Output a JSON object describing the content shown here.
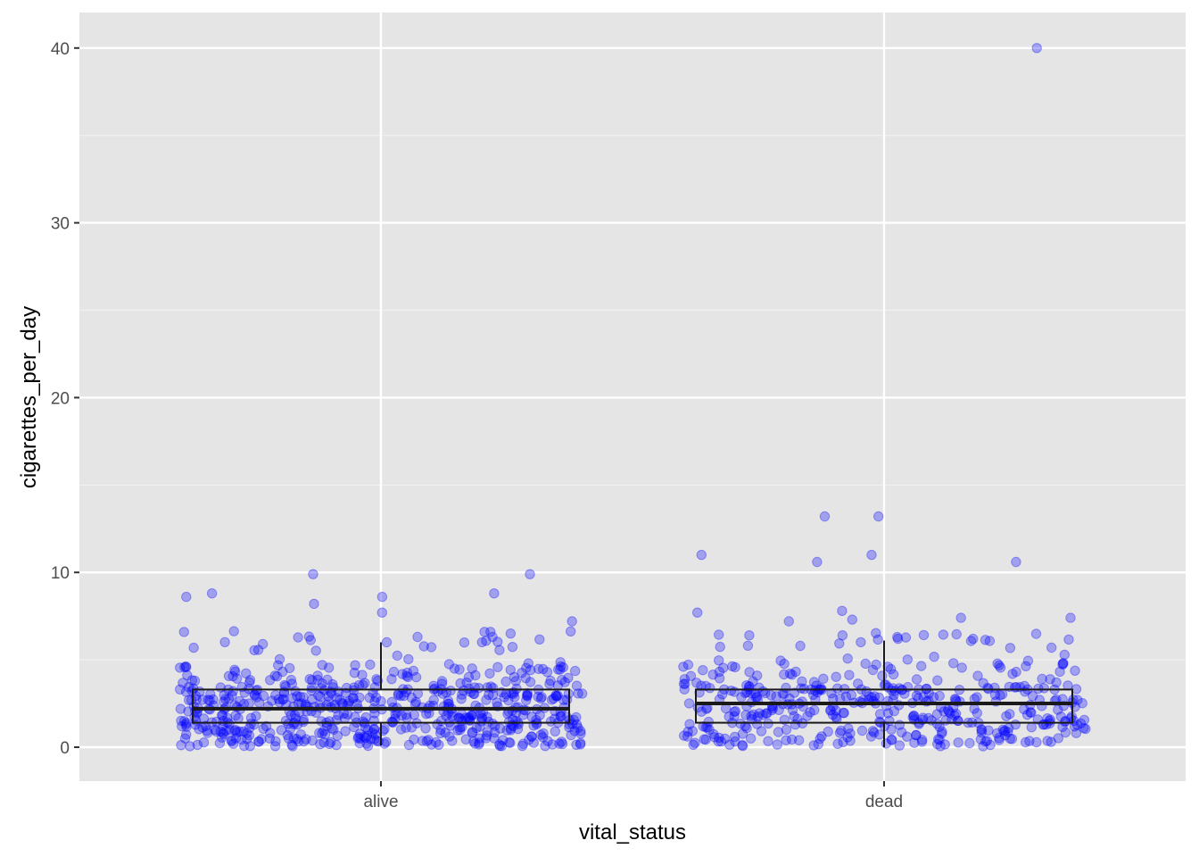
{
  "chart_data": {
    "type": "boxplot_jitter",
    "title": "",
    "xlabel": "vital_status",
    "ylabel": "cigarettes_per_day",
    "categories": [
      "alive",
      "dead"
    ],
    "ylim": [
      -2,
      42
    ],
    "y_ticks": [
      0,
      10,
      20,
      30,
      40
    ],
    "grid": true,
    "point_color": "#0000ff",
    "point_alpha": 0.3,
    "box_color": "#1a1a1a",
    "panel_background": "#e5e5e5",
    "boxes": [
      {
        "category": "alive",
        "whisker_low": 0.1,
        "q1": 1.4,
        "median": 2.2,
        "q3": 3.3,
        "whisker_high": 6.0
      },
      {
        "category": "dead",
        "whisker_low": 0.0,
        "q1": 1.4,
        "median": 2.5,
        "q3": 3.3,
        "whisker_high": 6.1
      }
    ],
    "series": [
      {
        "category": "alive",
        "n_points": 620,
        "distribution": "right-skewed, most values between 0 and 5",
        "notable_values": [
          8.6,
          8.6,
          9.9,
          9.9,
          8.8,
          8.8,
          8.2,
          7.7,
          7.2,
          6.6,
          6.6,
          6.5,
          6.0
        ]
      },
      {
        "category": "dead",
        "n_points": 440,
        "distribution": "right-skewed, most values between 0 and 5",
        "notable_values": [
          40.0,
          13.2,
          13.2,
          11.0,
          11.0,
          10.6,
          10.6,
          7.8,
          7.7,
          7.4,
          7.4,
          7.3,
          7.2,
          6.4,
          6.4,
          6.3,
          6.2
        ]
      }
    ]
  }
}
